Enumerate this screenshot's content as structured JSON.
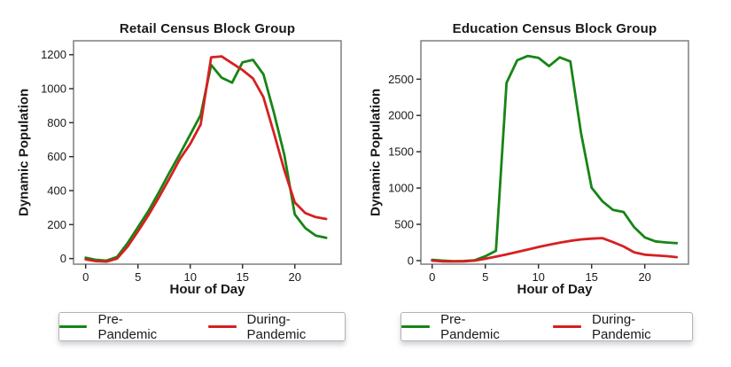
{
  "figure": {
    "background": "#ffffff",
    "frame_color": "#7f7f7f",
    "tick_color": "#333333",
    "text_color": "#1a1a1a"
  },
  "chart_data": [
    {
      "type": "line",
      "title": "Retail Census Block Group",
      "xlabel": "Hour of Day",
      "ylabel": "Dynamic Population",
      "grid": false,
      "legend_position": "below",
      "xlim": [
        -1.16,
        24.43
      ],
      "ylim": [
        -33,
        1282
      ],
      "xticks": [
        0,
        5,
        10,
        15,
        20
      ],
      "yticks": [
        0,
        200,
        400,
        600,
        800,
        1000,
        1200
      ],
      "x": [
        0,
        1,
        2,
        3,
        4,
        5,
        6,
        7,
        8,
        9,
        10,
        11,
        12,
        13,
        14,
        15,
        16,
        17,
        18,
        19,
        20,
        21,
        22,
        23
      ],
      "series": [
        {
          "name": "Pre-Pandemic",
          "color": "#168516",
          "values": [
            5,
            -8,
            -12,
            10,
            90,
            185,
            280,
            390,
            505,
            615,
            730,
            845,
            1140,
            1065,
            1035,
            1155,
            1170,
            1085,
            860,
            610,
            260,
            180,
            135,
            122
          ]
        },
        {
          "name": "During-Pandemic",
          "color": "#d62020",
          "values": [
            -5,
            -15,
            -18,
            0,
            70,
            160,
            255,
            360,
            470,
            585,
            675,
            790,
            1185,
            1190,
            1150,
            1110,
            1060,
            950,
            740,
            520,
            330,
            268,
            244,
            233
          ]
        }
      ]
    },
    {
      "type": "line",
      "title": "Education Census Block Group",
      "xlabel": "Hour of Day",
      "ylabel": "Dynamic Population",
      "grid": false,
      "legend_position": "below",
      "xlim": [
        -1.06,
        24.11
      ],
      "ylim": [
        -49,
        3029
      ],
      "xticks": [
        0,
        5,
        10,
        15,
        20
      ],
      "yticks": [
        0,
        500,
        1000,
        1500,
        2000,
        2500
      ],
      "x": [
        0,
        1,
        2,
        3,
        4,
        5,
        6,
        7,
        8,
        9,
        10,
        11,
        12,
        13,
        14,
        15,
        16,
        17,
        18,
        19,
        20,
        21,
        22,
        23
      ],
      "series": [
        {
          "name": "Pre-Pandemic",
          "color": "#168516",
          "values": [
            10,
            0,
            -8,
            -5,
            5,
            60,
            135,
            2450,
            2760,
            2820,
            2795,
            2680,
            2800,
            2745,
            1760,
            1005,
            820,
            700,
            670,
            460,
            320,
            265,
            250,
            240
          ]
        },
        {
          "name": "During-Pandemic",
          "color": "#d62020",
          "values": [
            0,
            -10,
            -12,
            -10,
            0,
            25,
            55,
            85,
            118,
            152,
            188,
            218,
            248,
            272,
            292,
            303,
            310,
            255,
            195,
            115,
            82,
            72,
            62,
            48
          ]
        }
      ]
    }
  ]
}
